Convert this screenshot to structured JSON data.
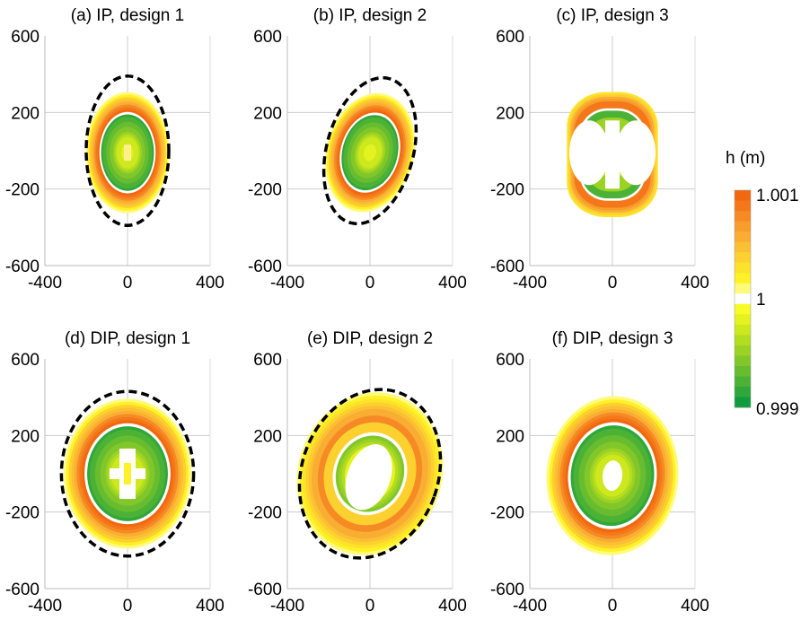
{
  "chart_data": [
    {
      "type": "heatmap",
      "title": "(a) IP, design 1",
      "xlim": [
        -400,
        400
      ],
      "ylim": [
        -600,
        600
      ],
      "xticks": [
        "-400",
        "0",
        "400"
      ],
      "yticks": [
        "600",
        "200",
        "-200",
        "-600"
      ],
      "field": {
        "center": [
          0,
          -10
        ],
        "rx": 220,
        "ry": 510,
        "rotation_deg": 0,
        "fill_rx": 0.92,
        "fill_ry": 0.62,
        "pattern": "ring",
        "hole": "small-cross"
      },
      "dashed_boundary": {
        "center": [
          0,
          0
        ],
        "rx": 200,
        "ry": 390,
        "rotation_deg": 0
      }
    },
    {
      "type": "heatmap",
      "title": "(b) IP, design 2",
      "xlim": [
        -400,
        400
      ],
      "ylim": [
        -600,
        600
      ],
      "xticks": [
        "-400",
        "0",
        "400"
      ],
      "yticks": [
        "600",
        "200",
        "-200",
        "-600"
      ],
      "field": {
        "center": [
          0,
          -10
        ],
        "rx": 230,
        "ry": 510,
        "rotation_deg": 15,
        "fill_rx": 0.92,
        "fill_ry": 0.62,
        "pattern": "ring",
        "hole": "none"
      },
      "dashed_boundary": {
        "center": [
          0,
          0
        ],
        "rx": 210,
        "ry": 390,
        "rotation_deg": 15
      }
    },
    {
      "type": "heatmap",
      "title": "(c) IP, design 3",
      "xlim": [
        -400,
        400
      ],
      "ylim": [
        -600,
        600
      ],
      "xticks": [
        "-400",
        "0",
        "400"
      ],
      "yticks": [
        "600",
        "200",
        "-200",
        "-600"
      ],
      "field": {
        "center": [
          0,
          -20
        ],
        "rx": 290,
        "ry": 460,
        "rotation_deg": 0,
        "fill_rx": 0.76,
        "fill_ry": 0.71,
        "pattern": "poles",
        "hole": "butterfly"
      },
      "dashed_boundary": null
    },
    {
      "type": "heatmap",
      "title": "(d) DIP, design 1",
      "xlim": [
        -400,
        400
      ],
      "ylim": [
        -600,
        600
      ],
      "xticks": [
        "-400",
        "0",
        "400"
      ],
      "yticks": [
        "600",
        "200",
        "-200",
        "-600"
      ],
      "field": {
        "center": [
          0,
          0
        ],
        "rx": 340,
        "ry": 560,
        "rotation_deg": 0,
        "fill_rx": 0.91,
        "fill_ry": 0.7,
        "pattern": "ring",
        "hole": "cross"
      },
      "dashed_boundary": {
        "center": [
          0,
          0
        ],
        "rx": 320,
        "ry": 430,
        "rotation_deg": 0
      }
    },
    {
      "type": "heatmap",
      "title": "(e) DIP, design 2",
      "xlim": [
        -400,
        400
      ],
      "ylim": [
        -600,
        600
      ],
      "xticks": [
        "-400",
        "0",
        "400"
      ],
      "yticks": [
        "600",
        "200",
        "-200",
        "-600"
      ],
      "field": {
        "center": [
          0,
          0
        ],
        "rx": 400,
        "ry": 600,
        "rotation_deg": 20,
        "fill_rx": 0.87,
        "fill_ry": 0.72,
        "pattern": "ring-outer-green",
        "hole": "blob"
      },
      "dashed_boundary": {
        "center": [
          0,
          0
        ],
        "rx": 330,
        "ry": 450,
        "rotation_deg": 20
      }
    },
    {
      "type": "heatmap",
      "title": "(f) DIP, design 3",
      "xlim": [
        -400,
        400
      ],
      "ylim": [
        -600,
        600
      ],
      "xticks": [
        "-400",
        "0",
        "400"
      ],
      "yticks": [
        "600",
        "200",
        "-200",
        "-600"
      ],
      "field": {
        "center": [
          0,
          -10
        ],
        "rx": 380,
        "ry": 520,
        "rotation_deg": 5,
        "fill_rx": 0.84,
        "fill_ry": 0.8,
        "pattern": "ring",
        "hole": "oval"
      },
      "dashed_boundary": null
    }
  ],
  "colorbar": {
    "label": "h (m)",
    "ticks": [
      "1.001",
      "1",
      "0.999"
    ],
    "range": [
      0.999,
      1.001
    ],
    "colors_top_to_bottom": [
      "#f2680f",
      "#f4781a",
      "#f68a24",
      "#f89c2d",
      "#f9ad33",
      "#fbbf33",
      "#fcd02f",
      "#fde22a",
      "#fff126",
      "#fffb7a",
      "#ffffff",
      "#f7fb27",
      "#e4f21f",
      "#cde81c",
      "#b4dd1f",
      "#9bd224",
      "#82c72a",
      "#67bc30",
      "#4cb236",
      "#2fa73b",
      "#109c3e"
    ]
  }
}
